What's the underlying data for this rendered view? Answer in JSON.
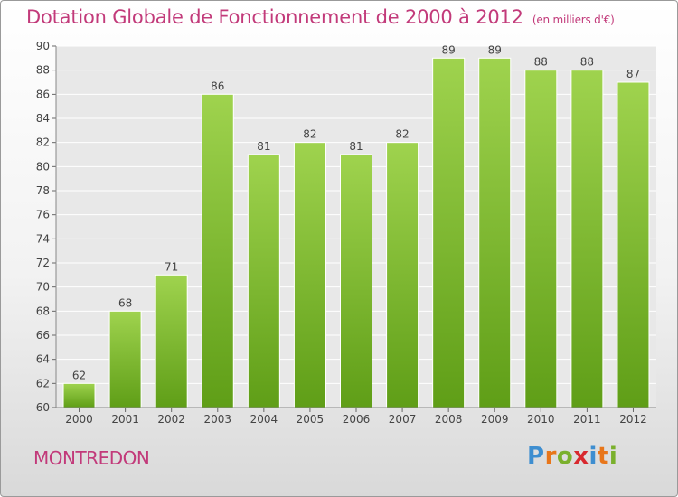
{
  "header": {
    "title": "Dotation Globale de Fonctionnement de 2000 à 2012",
    "unit": "(en milliers d'€)"
  },
  "footer": {
    "commune": "MONTREDON",
    "logo_letters": [
      "P",
      "r",
      "o",
      "x",
      "i",
      "t",
      "i"
    ],
    "logo_colors": [
      "#3e8ed0",
      "#e8761a",
      "#7ab02c",
      "#d8282e",
      "#3e8ed0",
      "#e8761a",
      "#7ab02c"
    ]
  },
  "chart_data": {
    "type": "bar",
    "title": "Dotation Globale de Fonctionnement de 2000 à 2012",
    "subtitle": "(en milliers d'€)",
    "xlabel": "",
    "ylabel": "",
    "categories": [
      "2000",
      "2001",
      "2002",
      "2003",
      "2004",
      "2005",
      "2006",
      "2007",
      "2008",
      "2009",
      "2010",
      "2011",
      "2012"
    ],
    "values": [
      62,
      68,
      71,
      86,
      81,
      82,
      81,
      82,
      89,
      89,
      88,
      88,
      87
    ],
    "ylim": [
      60,
      90
    ],
    "yticks": [
      60,
      62,
      64,
      66,
      68,
      70,
      72,
      74,
      76,
      78,
      80,
      82,
      84,
      86,
      88,
      90
    ],
    "grid": true,
    "bar_color": "#8cc63f",
    "bar_color_dark": "#5a9a14"
  }
}
